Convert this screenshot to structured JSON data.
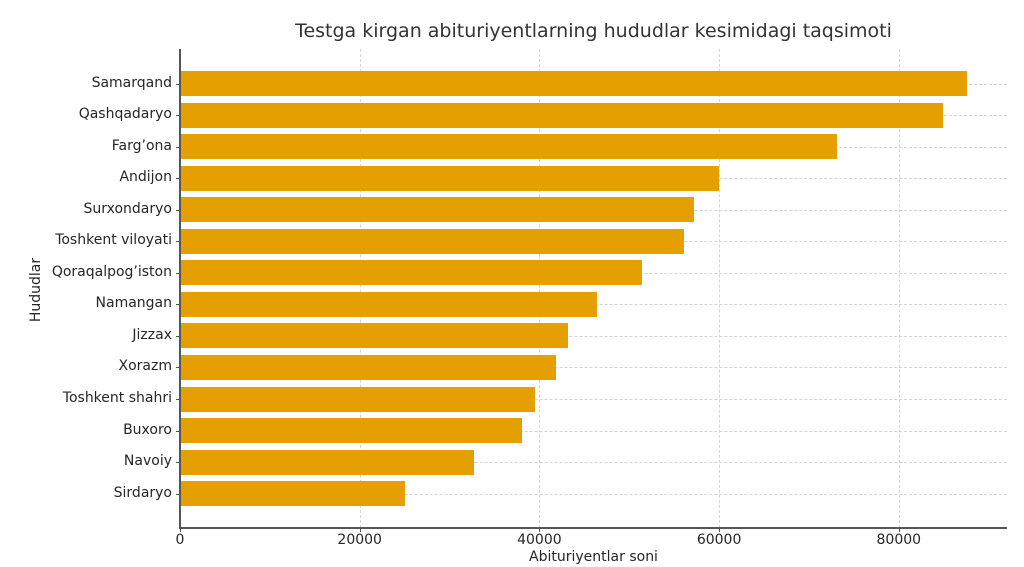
{
  "chart_data": {
    "type": "bar",
    "orientation": "horizontal",
    "title": "Testga kirgan abituriyentlarning hududlar kesimidagi taqsimoti",
    "xlabel": "Abituriyentlar soni",
    "ylabel": "Hududlar",
    "categories": [
      "Samarqand",
      "Qashqadaryo",
      "Farg’ona",
      "Andijon",
      "Surxondaryo",
      "Toshkent viloyati",
      "Qoraqalpog’iston",
      "Namangan",
      "Jizzax",
      "Xorazm",
      "Toshkent shahri",
      "Buxoro",
      "Navoiy",
      "Sirdaryo"
    ],
    "values": [
      87600,
      84900,
      73100,
      60000,
      57200,
      56100,
      51400,
      46400,
      43200,
      41800,
      39500,
      38100,
      32700,
      25000
    ],
    "xticks": [
      "0",
      "20000",
      "40000",
      "60000",
      "80000"
    ],
    "xlim": [
      0,
      92000
    ],
    "grid": true,
    "legend": null,
    "bar_color": "#E69F00"
  }
}
